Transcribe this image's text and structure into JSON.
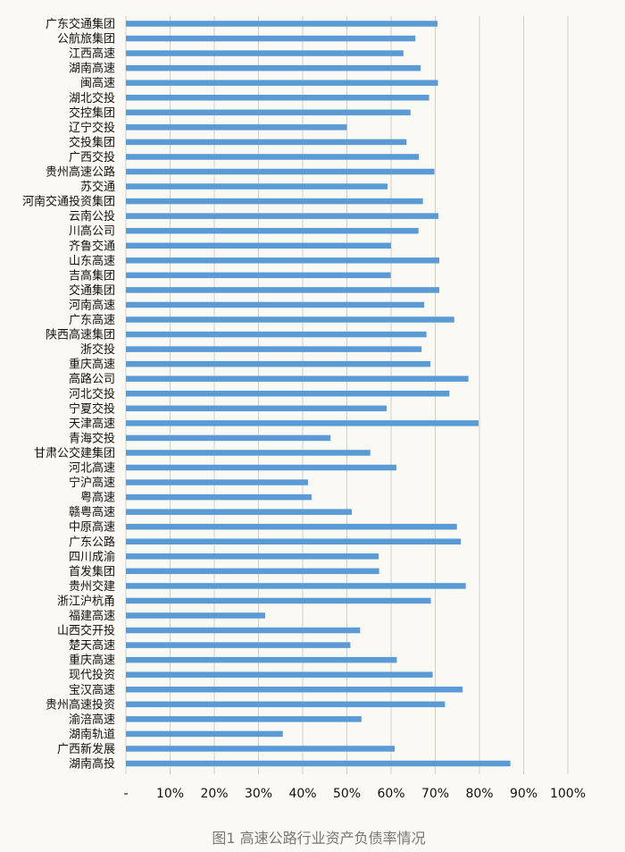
{
  "chart_data": {
    "type": "bar",
    "orientation": "horizontal",
    "title": "",
    "caption": "图1  高速公路行业资产负债率情况",
    "xlabel": "",
    "ylabel": "",
    "xlim": [
      0,
      100
    ],
    "x_ticks": [
      "-",
      "10%",
      "20%",
      "30%",
      "40%",
      "50%",
      "60%",
      "70%",
      "80%",
      "90%",
      "100%"
    ],
    "grid": "vertical",
    "legend": "none",
    "bar_color": "#5b9bd5",
    "categories": [
      "广东交通集团",
      "公航旅集团",
      "江西高速",
      "湖南高速",
      "闽高速",
      "湖北交投",
      "交控集团",
      "辽宁交投",
      "交投集团",
      "广西交投",
      "贵州高速公路",
      "苏交通",
      "河南交通投资集团",
      "云南公投",
      "川高公司",
      "齐鲁交通",
      "山东高速",
      "吉高集团",
      "交通集团",
      "河南高速",
      "广东高速",
      "陕西高速集团",
      "浙交投",
      "重庆高速",
      "高路公司",
      "河北交投",
      "宁夏交投",
      "天津高速",
      "青海交投",
      "甘肃公交建集团",
      "河北高速",
      "宁沪高速",
      "粤高速",
      "赣粤高速",
      "中原高速",
      "广东公路",
      "四川成渝",
      "首发集团",
      "贵州交建",
      "浙江沪杭甬",
      "福建高速",
      "山西交开投",
      "楚天高速",
      "重庆高速",
      "现代投资",
      "宝汉高速",
      "贵州高速投资",
      "渝涪高速",
      "湖南轨道",
      "广西新发展",
      "湖南高投"
    ],
    "values": [
      70.5,
      65.5,
      62.8,
      66.7,
      70.6,
      68.6,
      64.4,
      50.0,
      63.5,
      66.3,
      69.8,
      59.2,
      67.2,
      70.7,
      66.2,
      60.0,
      70.9,
      59.9,
      70.9,
      67.5,
      74.3,
      68.0,
      66.9,
      68.9,
      77.5,
      73.2,
      59.0,
      79.8,
      46.3,
      55.3,
      61.2,
      41.2,
      42.0,
      51.1,
      74.9,
      75.8,
      57.2,
      57.3,
      76.9,
      69.0,
      31.5,
      53.0,
      50.8,
      61.3,
      69.4,
      76.2,
      72.2,
      53.3,
      35.5,
      60.8,
      87.0
    ]
  }
}
